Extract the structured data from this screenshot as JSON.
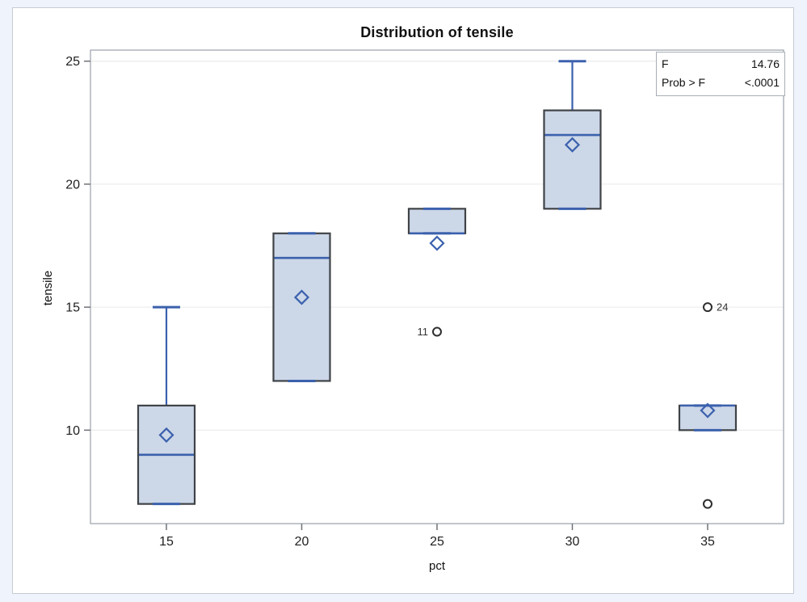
{
  "chart_data": {
    "type": "boxplot",
    "title": "Distribution of tensile",
    "xlabel": "pct",
    "ylabel": "tensile",
    "categories": [
      "15",
      "20",
      "25",
      "30",
      "35"
    ],
    "yticks": [
      10,
      15,
      20,
      25
    ],
    "ylim": [
      6.2,
      25.45
    ],
    "grid": "horizontal",
    "series": [
      {
        "category": "15",
        "q1": 7,
        "median": 9,
        "q3": 11,
        "mean": 9.8,
        "whisker_low": 7,
        "whisker_high": 15,
        "outliers": []
      },
      {
        "category": "20",
        "q1": 12,
        "median": 17,
        "q3": 18,
        "mean": 15.4,
        "whisker_low": 12,
        "whisker_high": 18,
        "outliers": []
      },
      {
        "category": "25",
        "q1": 18,
        "median": 18,
        "q3": 19,
        "mean": 17.6,
        "whisker_low": 18,
        "whisker_high": 19,
        "outliers": [
          {
            "value": 14,
            "label": "11",
            "side": "left"
          }
        ]
      },
      {
        "category": "30",
        "q1": 19,
        "median": 22,
        "q3": 23,
        "mean": 21.6,
        "whisker_low": 19,
        "whisker_high": 25,
        "outliers": []
      },
      {
        "category": "35",
        "q1": 10,
        "median": 11,
        "q3": 11,
        "mean": 10.8,
        "whisker_low": 10,
        "whisker_high": 11,
        "outliers": [
          {
            "value": 15,
            "label": "24",
            "side": "right"
          },
          {
            "value": 7,
            "label": "",
            "side": "none"
          }
        ]
      }
    ],
    "inset_stats": [
      {
        "label": "F",
        "value": "14.76"
      },
      {
        "label": "Prob > F",
        "value": "<.0001"
      }
    ],
    "colors": {
      "box_fill": "#ccd7e8",
      "box_border": "#3f4347",
      "line_blue": "#3b61ad",
      "gridline": "#ededed",
      "wall_border": "#9aa1a9",
      "tick": "#6e7379",
      "tick_text": "#1f1f1f",
      "outlier_stroke": "#2e2e2e",
      "outlier_label": "#333333",
      "page_bg": "#eff3fb"
    }
  }
}
